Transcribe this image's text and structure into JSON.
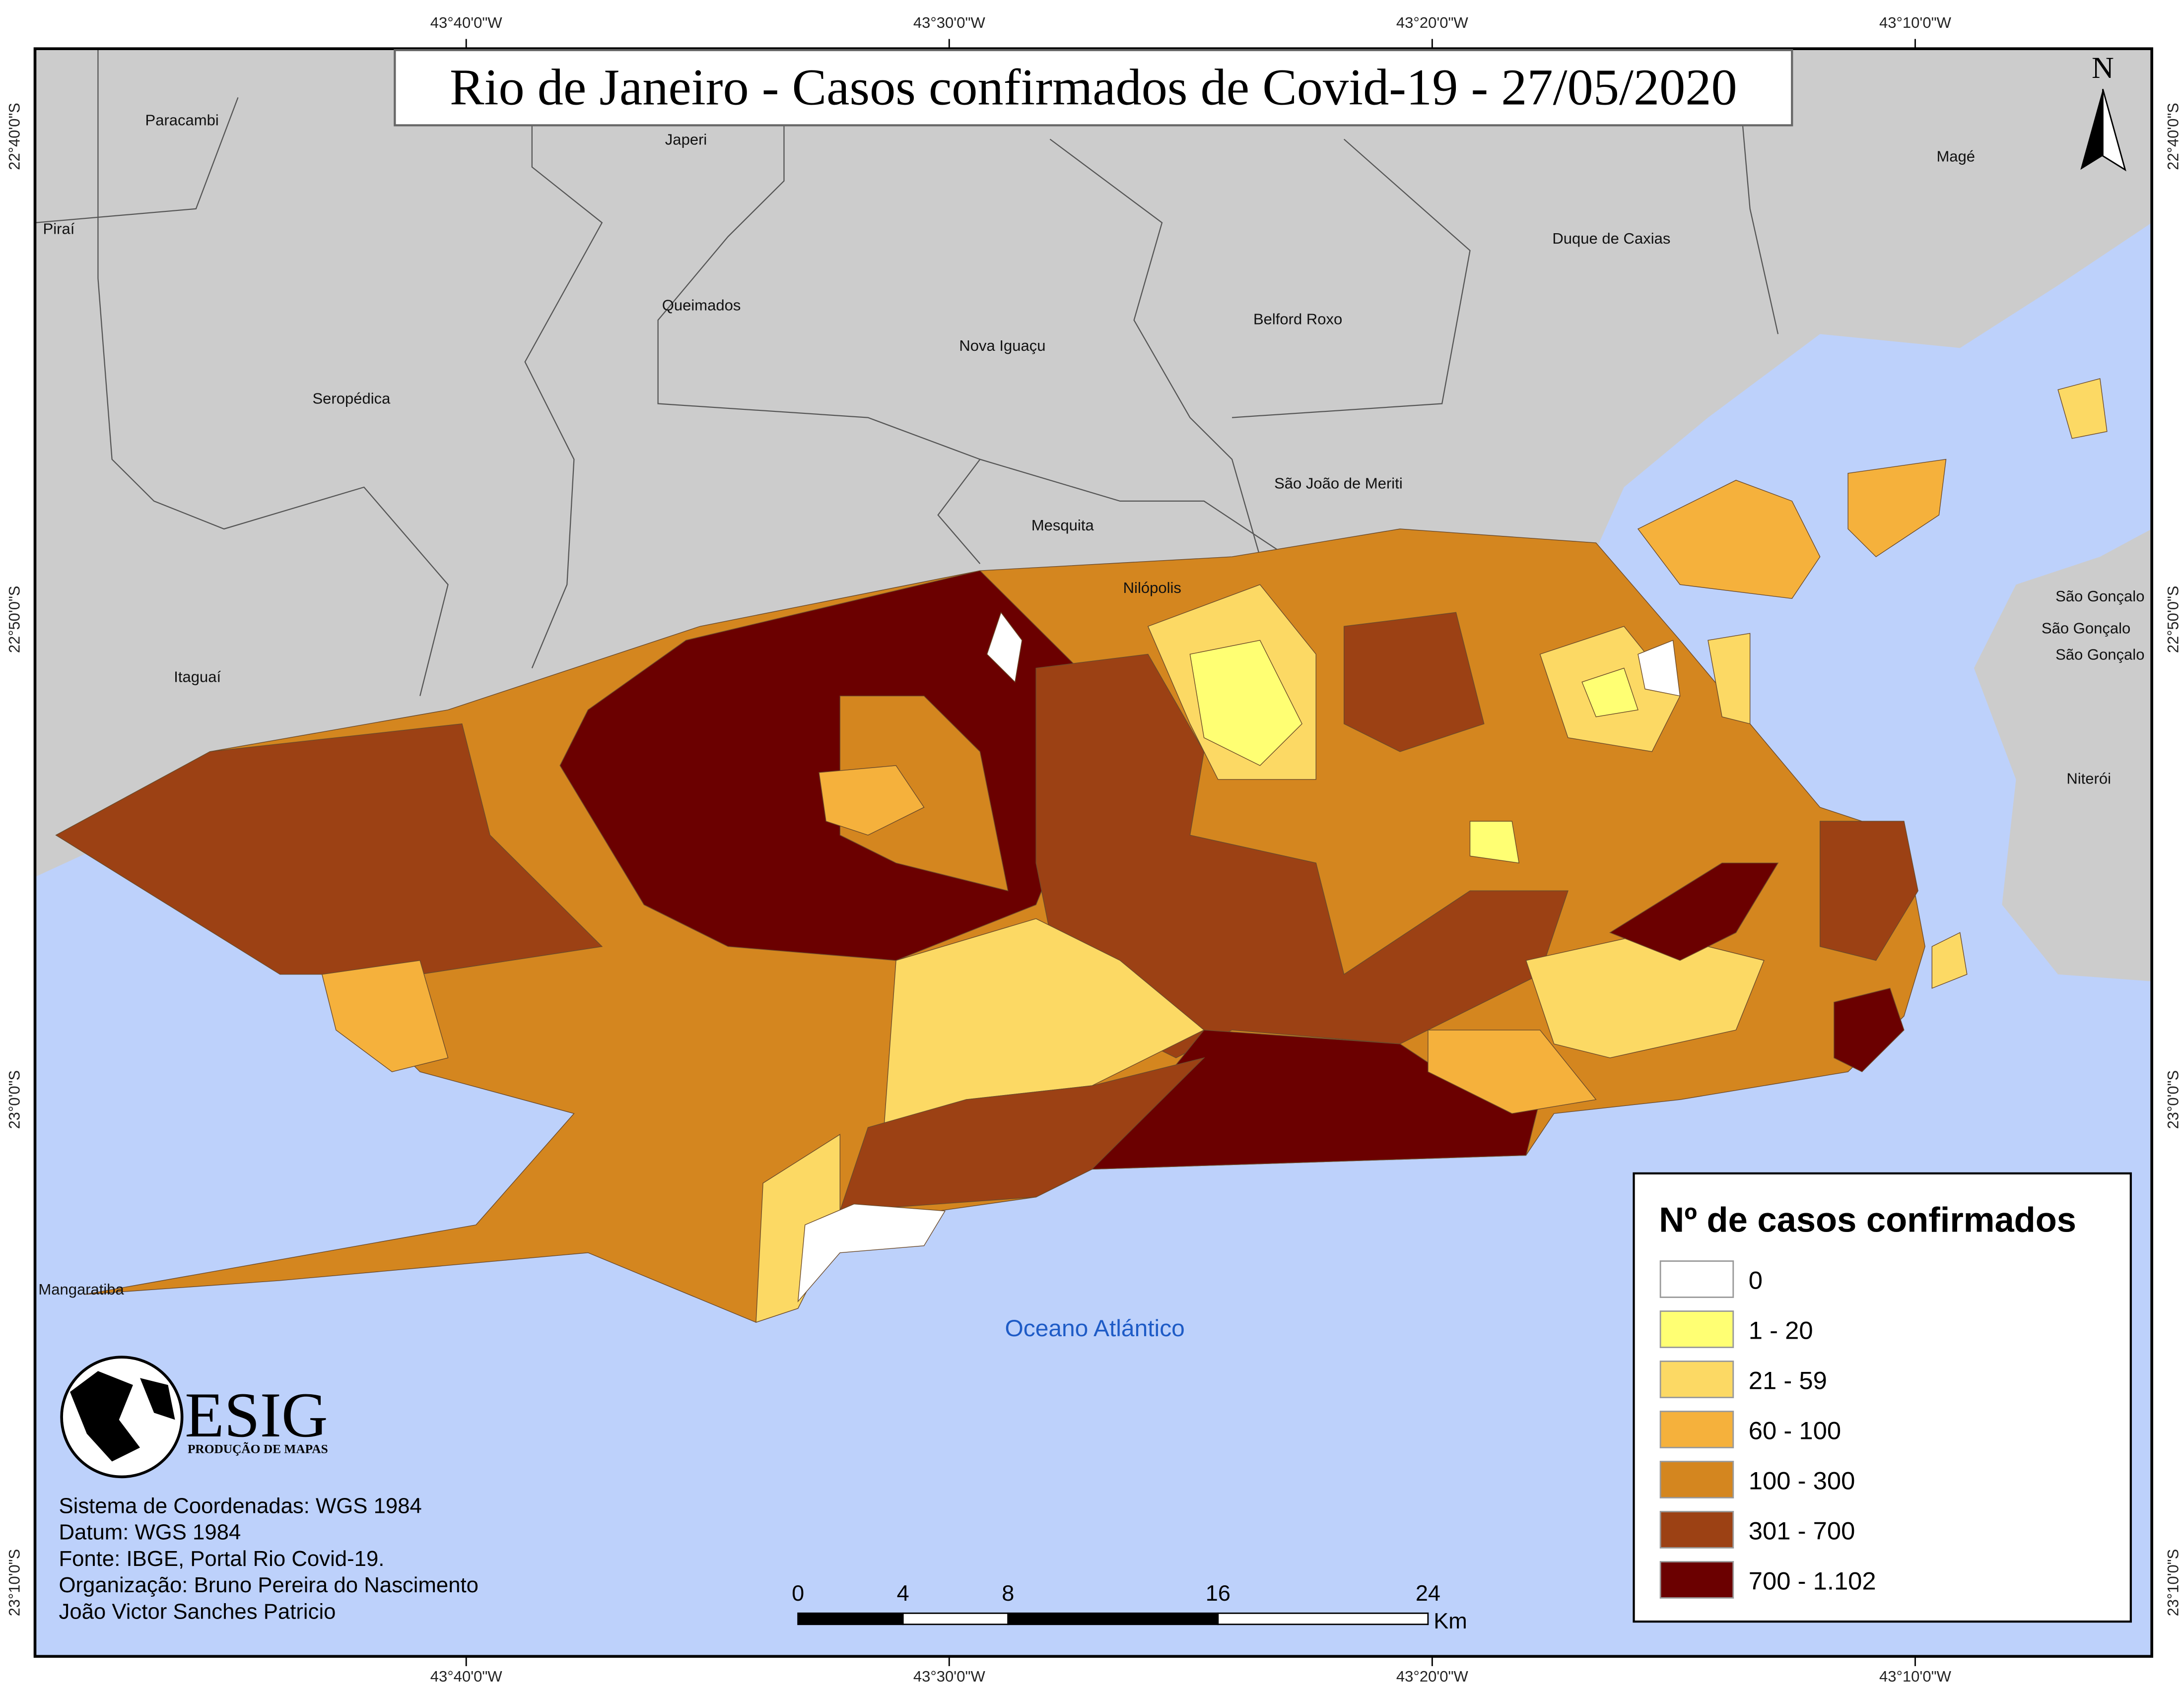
{
  "title": "Rio de Janeiro - Casos confirmados de Covid-19 - 27/05/2020",
  "north": "N",
  "coords": {
    "longitudes": [
      "43°40'0\"W",
      "43°30'0\"W",
      "43°20'0\"W",
      "43°10'0\"W"
    ],
    "latitudes": [
      "22°40'0\"S",
      "22°50'0\"S",
      "23°0'0\"S",
      "23°10'0\"S"
    ]
  },
  "places": [
    "Paracambi",
    "Japeri",
    "Magé",
    "Piraí",
    "Duque de Caxias",
    "Queimados",
    "Belford Roxo",
    "Nova Iguaçu",
    "Seropédica",
    "São João de Meriti",
    "Mesquita",
    "Nilópolis",
    "Itaguaí",
    "São Gonçalo",
    "São Gonçalo",
    "São Gonçalo",
    "Niterói",
    "Mangaratiba"
  ],
  "ocean": "Oceano Atlántico",
  "legend": {
    "title": "Nº de casos confirmados",
    "items": [
      {
        "label": "0",
        "color": "#ffffff"
      },
      {
        "label": "1 - 20",
        "color": "#ffff73"
      },
      {
        "label": "21 - 59",
        "color": "#fcd964"
      },
      {
        "label": "60 - 100",
        "color": "#f5b13c"
      },
      {
        "label": "100 - 300",
        "color": "#d4861f"
      },
      {
        "label": "301 - 700",
        "color": "#9c4114"
      },
      {
        "label": "700 - 1.102",
        "color": "#6b0000"
      }
    ]
  },
  "scale_bar": {
    "ticks": [
      0,
      4,
      8,
      16,
      24
    ],
    "unit": "Km"
  },
  "logo": {
    "name": "ESIG",
    "subtitle": "PRODUÇÃO DE MAPAS"
  },
  "credits": [
    "Sistema de Coordenadas: WGS 1984",
    "Datum: WGS 1984",
    "Fonte: IBGE, Portal Rio Covid-19.",
    "Organização: Bruno Pereira do Nascimento",
    "João Victor Sanches Patricio"
  ],
  "colors": {
    "ocean": "#bdd1fb",
    "land": "#cccccc"
  }
}
